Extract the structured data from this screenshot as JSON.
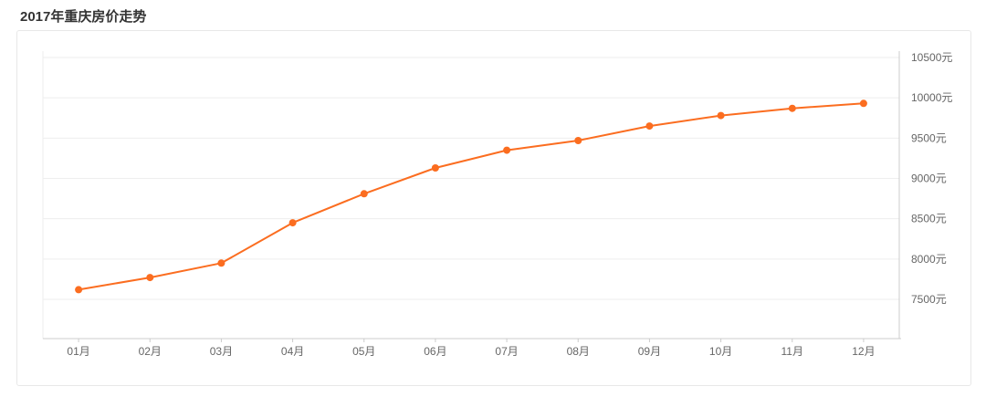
{
  "page": {
    "title": "2017年重庆房价走势"
  },
  "chart_data": {
    "type": "line",
    "title": "2017年重庆房价走势",
    "categories": [
      "01月",
      "02月",
      "03月",
      "04月",
      "05月",
      "06月",
      "07月",
      "08月",
      "09月",
      "10月",
      "11月",
      "12月"
    ],
    "values": [
      7620,
      7770,
      7950,
      8450,
      8810,
      9130,
      9350,
      9470,
      9650,
      9780,
      9870,
      9930
    ],
    "yticks": [
      7500,
      8000,
      8500,
      9000,
      9500,
      10000,
      10500
    ],
    "ytick_suffix": "元",
    "ylim": [
      7500,
      10500
    ],
    "xlabel": "",
    "ylabel": "",
    "grid": true,
    "legend_position": "none",
    "y_axis_side": "right",
    "colors": {
      "line": "#fb6d20",
      "marker": "#fb6d20",
      "gridline": "#eeeeee",
      "axis_line": "#cccccc",
      "tick_label": "#666666",
      "title_text": "#333333",
      "card_border": "#e8e8e8"
    }
  }
}
